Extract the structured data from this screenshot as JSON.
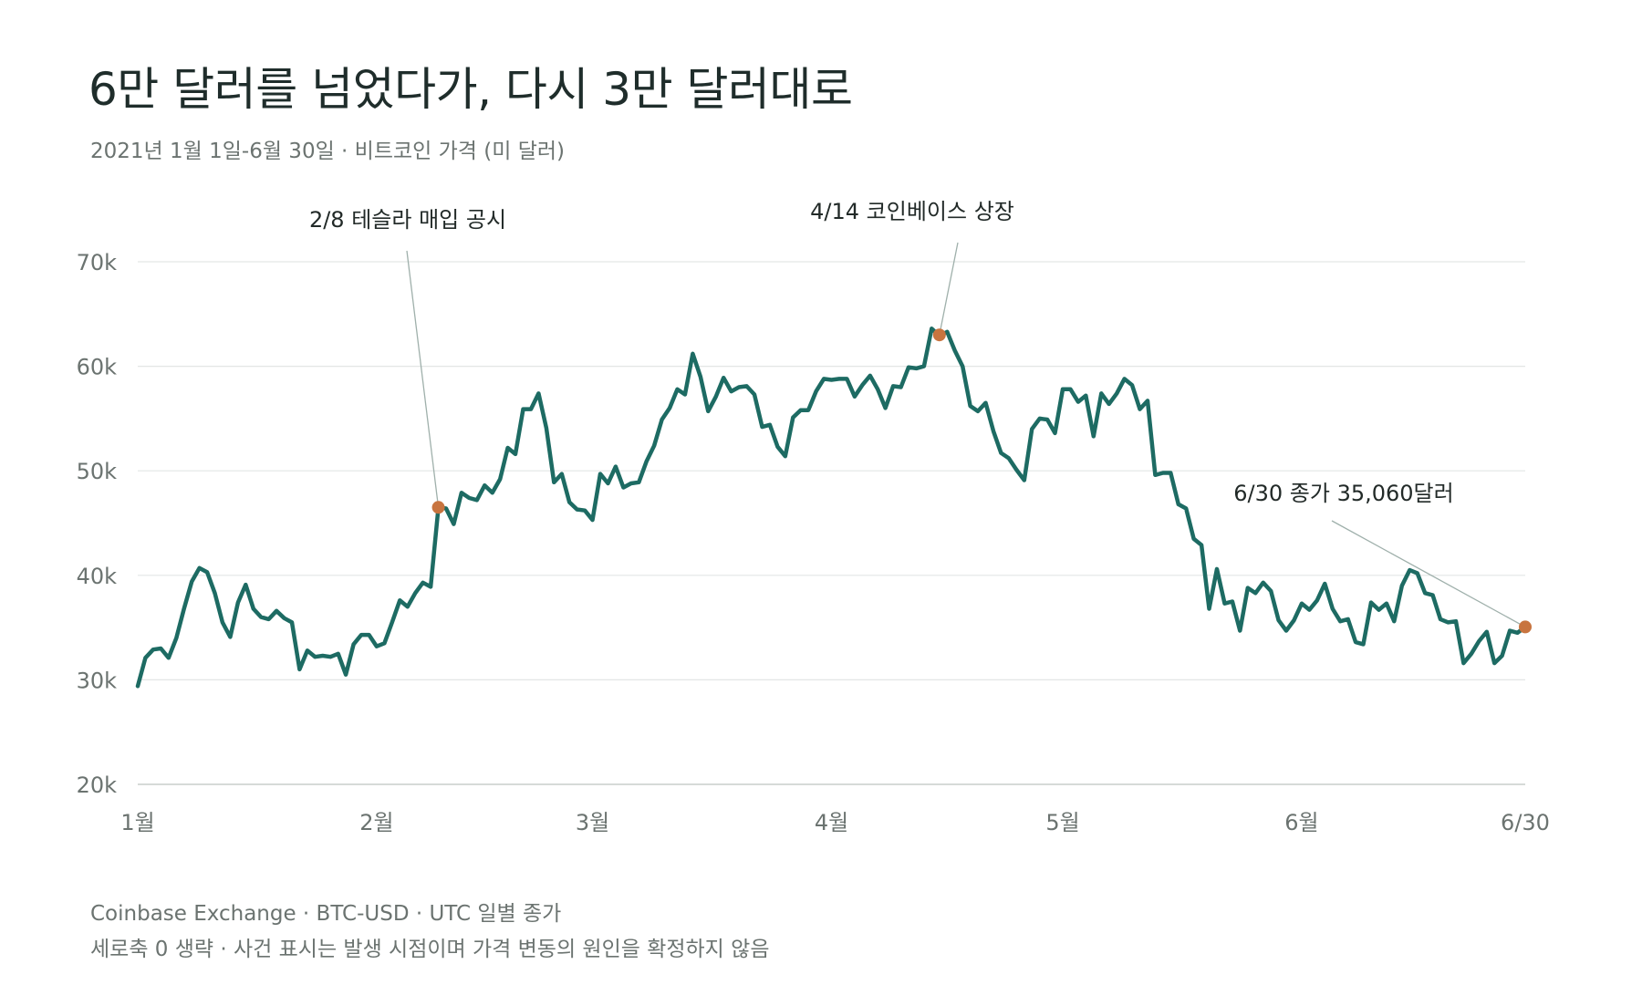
{
  "title": "6만 달러를 넘었다가, 다시 3만 달러대로",
  "subtitle": "2021년 1월 1일-6월 30일 · 비트코인 가격 (미 달러)",
  "footnotes": [
    "Coinbase Exchange · BTC-USD · UTC 일별 종가",
    "세로축 0 생략 · 사건 표시는 발생 시점이며 가격 변동의 원인을 확정하지 않음"
  ],
  "colors": {
    "line": "#1d6b63",
    "marker": "#c8743f",
    "grid": "#e3e6e5",
    "leader": "#9fb0ab"
  },
  "chart_data": {
    "type": "line",
    "x_unit": "day of 2021",
    "ylim": [
      20000,
      70000
    ],
    "xlim": [
      1,
      181
    ],
    "y_ticks": [
      {
        "value": 20000,
        "label": "20k"
      },
      {
        "value": 30000,
        "label": "30k"
      },
      {
        "value": 40000,
        "label": "40k"
      },
      {
        "value": 50000,
        "label": "50k"
      },
      {
        "value": 60000,
        "label": "60k"
      },
      {
        "value": 70000,
        "label": "70k"
      }
    ],
    "x_ticks": [
      {
        "value": 1,
        "label": "1월"
      },
      {
        "value": 32,
        "label": "2월"
      },
      {
        "value": 60,
        "label": "3월"
      },
      {
        "value": 91,
        "label": "4월"
      },
      {
        "value": 121,
        "label": "5월"
      },
      {
        "value": 152,
        "label": "6월"
      },
      {
        "value": 181,
        "label": "6/30"
      }
    ],
    "grid": true,
    "series": [
      {
        "points": [
          [
            1,
            29400
          ],
          [
            2,
            32100
          ],
          [
            3,
            32900
          ],
          [
            4,
            33000
          ],
          [
            5,
            32100
          ],
          [
            6,
            34000
          ],
          [
            7,
            36800
          ],
          [
            8,
            39400
          ],
          [
            9,
            40700
          ],
          [
            10,
            40300
          ],
          [
            11,
            38300
          ],
          [
            12,
            35500
          ],
          [
            13,
            34100
          ],
          [
            14,
            37400
          ],
          [
            15,
            39100
          ],
          [
            16,
            36800
          ],
          [
            17,
            36000
          ],
          [
            18,
            35800
          ],
          [
            19,
            36600
          ],
          [
            20,
            35900
          ],
          [
            21,
            35500
          ],
          [
            22,
            31000
          ],
          [
            23,
            32800
          ],
          [
            24,
            32200
          ],
          [
            25,
            32300
          ],
          [
            26,
            32200
          ],
          [
            27,
            32500
          ],
          [
            28,
            30500
          ],
          [
            29,
            33400
          ],
          [
            30,
            34300
          ],
          [
            31,
            34300
          ],
          [
            32,
            33200
          ],
          [
            33,
            33500
          ],
          [
            34,
            35500
          ],
          [
            35,
            37600
          ],
          [
            36,
            37000
          ],
          [
            37,
            38300
          ],
          [
            38,
            39300
          ],
          [
            39,
            38900
          ],
          [
            40,
            46500
          ],
          [
            41,
            46400
          ],
          [
            42,
            44900
          ],
          [
            43,
            47900
          ],
          [
            44,
            47400
          ],
          [
            45,
            47200
          ],
          [
            46,
            48600
          ],
          [
            47,
            47900
          ],
          [
            48,
            49200
          ],
          [
            49,
            52200
          ],
          [
            50,
            51600
          ],
          [
            51,
            55900
          ],
          [
            52,
            55900
          ],
          [
            53,
            57400
          ],
          [
            54,
            54100
          ],
          [
            55,
            48900
          ],
          [
            56,
            49700
          ],
          [
            57,
            47000
          ],
          [
            58,
            46300
          ],
          [
            59,
            46200
          ],
          [
            60,
            45300
          ],
          [
            61,
            49700
          ],
          [
            62,
            48800
          ],
          [
            63,
            50400
          ],
          [
            64,
            48400
          ],
          [
            65,
            48800
          ],
          [
            66,
            48900
          ],
          [
            67,
            50900
          ],
          [
            68,
            52400
          ],
          [
            69,
            54900
          ],
          [
            70,
            56000
          ],
          [
            71,
            57800
          ],
          [
            72,
            57300
          ],
          [
            73,
            61200
          ],
          [
            74,
            59000
          ],
          [
            75,
            55700
          ],
          [
            76,
            57100
          ],
          [
            77,
            58900
          ],
          [
            78,
            57600
          ],
          [
            79,
            58000
          ],
          [
            80,
            58100
          ],
          [
            81,
            57300
          ],
          [
            82,
            54200
          ],
          [
            83,
            54400
          ],
          [
            84,
            52300
          ],
          [
            85,
            51400
          ],
          [
            86,
            55100
          ],
          [
            87,
            55800
          ],
          [
            88,
            55800
          ],
          [
            89,
            57600
          ],
          [
            90,
            58800
          ],
          [
            91,
            58700
          ],
          [
            92,
            58800
          ],
          [
            93,
            58800
          ],
          [
            94,
            57100
          ],
          [
            95,
            58200
          ],
          [
            96,
            59100
          ],
          [
            97,
            57800
          ],
          [
            98,
            56000
          ],
          [
            99,
            58100
          ],
          [
            100,
            58000
          ],
          [
            101,
            59900
          ],
          [
            102,
            59800
          ],
          [
            103,
            60000
          ],
          [
            104,
            63600
          ],
          [
            105,
            62900
          ],
          [
            106,
            63300
          ],
          [
            107,
            61500
          ],
          [
            108,
            60000
          ],
          [
            109,
            56200
          ],
          [
            110,
            55700
          ],
          [
            111,
            56500
          ],
          [
            112,
            53800
          ],
          [
            113,
            51700
          ],
          [
            114,
            51200
          ],
          [
            115,
            50100
          ],
          [
            116,
            49100
          ],
          [
            117,
            54000
          ],
          [
            118,
            55000
          ],
          [
            119,
            54900
          ],
          [
            120,
            53600
          ],
          [
            121,
            57800
          ],
          [
            122,
            57800
          ],
          [
            123,
            56600
          ],
          [
            124,
            57200
          ],
          [
            125,
            53300
          ],
          [
            126,
            57400
          ],
          [
            127,
            56400
          ],
          [
            128,
            57400
          ],
          [
            129,
            58800
          ],
          [
            130,
            58200
          ],
          [
            131,
            55900
          ],
          [
            132,
            56700
          ],
          [
            133,
            49600
          ],
          [
            134,
            49800
          ],
          [
            135,
            49800
          ],
          [
            136,
            46800
          ],
          [
            137,
            46400
          ],
          [
            138,
            43500
          ],
          [
            139,
            42900
          ],
          [
            140,
            36800
          ],
          [
            141,
            40600
          ],
          [
            142,
            37300
          ],
          [
            143,
            37500
          ],
          [
            144,
            34700
          ],
          [
            145,
            38800
          ],
          [
            146,
            38300
          ],
          [
            147,
            39300
          ],
          [
            148,
            38500
          ],
          [
            149,
            35700
          ],
          [
            150,
            34700
          ],
          [
            151,
            35700
          ],
          [
            152,
            37300
          ],
          [
            153,
            36700
          ],
          [
            154,
            37600
          ],
          [
            155,
            39200
          ],
          [
            156,
            36800
          ],
          [
            157,
            35600
          ],
          [
            158,
            35800
          ],
          [
            159,
            33600
          ],
          [
            160,
            33400
          ],
          [
            161,
            37400
          ],
          [
            162,
            36700
          ],
          [
            163,
            37300
          ],
          [
            164,
            35600
          ],
          [
            165,
            39000
          ],
          [
            166,
            40500
          ],
          [
            167,
            40200
          ],
          [
            168,
            38300
          ],
          [
            169,
            38100
          ],
          [
            170,
            35800
          ],
          [
            171,
            35500
          ],
          [
            172,
            35600
          ],
          [
            173,
            31600
          ],
          [
            174,
            32500
          ],
          [
            175,
            33700
          ],
          [
            176,
            34600
          ],
          [
            177,
            31600
          ],
          [
            178,
            32300
          ],
          [
            179,
            34700
          ],
          [
            180,
            34500
          ],
          [
            181,
            35060
          ]
        ]
      }
    ],
    "annotations": [
      {
        "x": 40,
        "y": 46500,
        "label": "2/8 테슬라 매입 공시"
      },
      {
        "x": 105,
        "y": 63000,
        "label": "4/14 코인베이스 상장"
      },
      {
        "x": 181,
        "y": 35060,
        "label": "6/30 종가 35,060달러"
      }
    ]
  }
}
